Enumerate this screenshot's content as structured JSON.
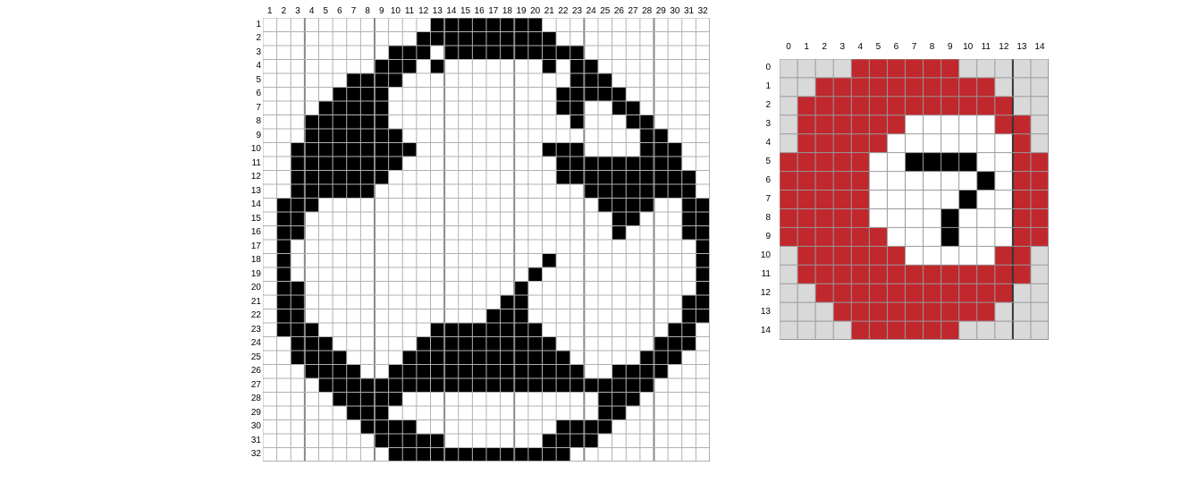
{
  "grids": [
    {
      "name": "ball-grid",
      "rows": 32,
      "cols": 32,
      "col_labels": [
        "1",
        "2",
        "3",
        "4",
        "5",
        "6",
        "7",
        "8",
        "9",
        "10",
        "11",
        "12",
        "13",
        "14",
        "15",
        "16",
        "17",
        "18",
        "19",
        "20",
        "21",
        "22",
        "23",
        "24",
        "25",
        "26",
        "27",
        "28",
        "29",
        "30",
        "31",
        "32"
      ],
      "row_labels": [
        "1",
        "2",
        "3",
        "4",
        "5",
        "6",
        "7",
        "8",
        "9",
        "10",
        "11",
        "12",
        "13",
        "14",
        "15",
        "16",
        "17",
        "18",
        "19",
        "20",
        "21",
        "22",
        "23",
        "24",
        "25",
        "26",
        "27",
        "28",
        "29",
        "30",
        "31",
        "32"
      ],
      "palette": {
        "0": "#ffffff",
        "1": "#000000"
      },
      "line_color": "#b0b0b0",
      "major_line_color": "#888888",
      "pixels": [
        "00000000000011111111000000000000",
        "00000000000111111111100000000000",
        "00000000011101111111111000000000",
        "00000000111010000000101100000000",
        "00000011110000000000001110000000",
        "00000111100000000000011111000000",
        "00001111100000000000011001100000",
        "00011111100000000000001000110000",
        "00011111110000000000000000011000",
        "00111111111000000000111000011100",
        "00111111110000000000011111111100",
        "00111111100000000000011111111110",
        "00111111000000000000000111111110",
        "01110000000000000000000011110011",
        "01100000000000000000000001100011",
        "01100000000000000000000001000011",
        "01000000000000000000000000000001",
        "01000000000000000000100000000001",
        "01000000000000000001000000000001",
        "01100000000000000010000000000001",
        "01100000000000000110000000000011",
        "01100000000000001110000000000011",
        "01110000000011111111000000000110",
        "00111000000111111111100000001110",
        "00111100001111111111110000011100",
        "00011110011111111111111001111000",
        "00001111111111111111111111110000",
        "00000111110000000000000011100000",
        "00000011100000000000000011000000",
        "00000001111000000000011110000000",
        "00000000111110000000111100000000",
        "00000000011111111111110000000000"
      ]
    },
    {
      "name": "clock-grid",
      "rows": 15,
      "cols": 15,
      "col_labels": [
        "0",
        "1",
        "2",
        "3",
        "4",
        "5",
        "6",
        "7",
        "8",
        "9",
        "10",
        "11",
        "12",
        "13",
        "14"
      ],
      "row_labels": [
        "0",
        "1",
        "2",
        "3",
        "4",
        "5",
        "6",
        "7",
        "8",
        "9",
        "10",
        "11",
        "12",
        "13",
        "14"
      ],
      "palette": {
        "0": "#d9d9d9",
        "1": "#c0282d",
        "2": "#ffffff",
        "3": "#000000"
      },
      "line_color": "#999999",
      "major_line_color": "#333333",
      "pixels": [
        "000011111100000",
        "001111111111000",
        "011111111111100",
        "011111122222110",
        "011111222222210",
        "111112233332211",
        "111112222223211",
        "111112222232211",
        "111112222322211",
        "111111222322211",
        "011111122222110",
        "011111111111110",
        "001111111111100",
        "000111111111000",
        "000011111100000"
      ]
    }
  ]
}
